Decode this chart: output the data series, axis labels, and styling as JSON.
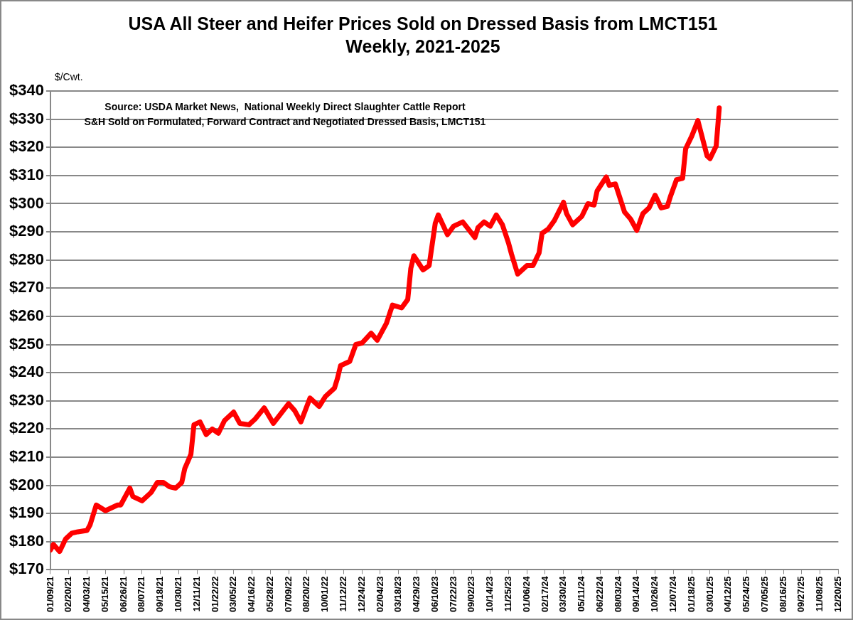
{
  "chart_data": {
    "type": "line",
    "title": "USA All Steer and Heifer Prices Sold on Dressed Basis from LMCT151",
    "subtitle": "Weekly, 2021-2025",
    "ylabel": "$/Cwt.",
    "annotations": [
      "Source: USDA Market News,  National Weekly Direct Slaughter Cattle Report",
      "S&H Sold on Formulated, Forward Contract and Negotiated Dressed Basis, LMCT151"
    ],
    "x": [
      "2021-01-09",
      "2021-01-16",
      "2021-01-30",
      "2021-02-13",
      "2021-02-27",
      "2021-03-13",
      "2021-04-03",
      "2021-04-10",
      "2021-04-24",
      "2021-05-15",
      "2021-05-29",
      "2021-06-12",
      "2021-06-19",
      "2021-07-10",
      "2021-07-17",
      "2021-08-07",
      "2021-08-28",
      "2021-09-11",
      "2021-09-25",
      "2021-10-09",
      "2021-10-23",
      "2021-11-06",
      "2021-11-13",
      "2021-11-27",
      "2021-12-04",
      "2021-12-18",
      "2022-01-01",
      "2022-01-15",
      "2022-01-29",
      "2022-02-12",
      "2022-03-05",
      "2022-03-19",
      "2022-04-09",
      "2022-04-23",
      "2022-05-14",
      "2022-06-04",
      "2022-07-09",
      "2022-07-23",
      "2022-08-06",
      "2022-08-27",
      "2022-09-17",
      "2022-10-01",
      "2022-10-22",
      "2022-10-29",
      "2022-11-05",
      "2022-11-26",
      "2022-12-10",
      "2022-12-24",
      "2023-01-14",
      "2023-01-28",
      "2023-02-18",
      "2023-03-04",
      "2023-03-25",
      "2023-04-08",
      "2023-04-15",
      "2023-04-22",
      "2023-05-13",
      "2023-05-27",
      "2023-06-10",
      "2023-06-17",
      "2023-07-08",
      "2023-07-22",
      "2023-08-12",
      "2023-09-09",
      "2023-09-16",
      "2023-09-30",
      "2023-10-14",
      "2023-10-28",
      "2023-11-11",
      "2023-11-25",
      "2023-12-02",
      "2023-12-16",
      "2024-01-06",
      "2024-01-20",
      "2024-02-03",
      "2024-02-10",
      "2024-02-24",
      "2024-03-09",
      "2024-03-30",
      "2024-04-06",
      "2024-04-20",
      "2024-05-11",
      "2024-05-25",
      "2024-06-08",
      "2024-06-15",
      "2024-07-06",
      "2024-07-13",
      "2024-07-27",
      "2024-08-17",
      "2024-08-31",
      "2024-09-14",
      "2024-09-28",
      "2024-10-12",
      "2024-10-26",
      "2024-11-09",
      "2024-11-23",
      "2024-11-30",
      "2024-12-14",
      "2024-12-28",
      "2025-01-04",
      "2025-01-18",
      "2025-02-01",
      "2025-02-22",
      "2025-03-01",
      "2025-03-15",
      "2025-03-22"
    ],
    "series": [
      {
        "color": "#ff0000",
        "values": [
          177,
          179,
          176.5,
          181,
          183,
          183.5,
          184,
          186,
          193,
          191,
          192,
          193,
          193,
          199,
          196,
          194.5,
          197.5,
          201,
          201,
          199.5,
          199,
          201,
          206,
          211,
          221.5,
          222.5,
          218,
          220,
          218.5,
          223,
          226,
          222,
          221.5,
          223.5,
          227.5,
          222,
          229,
          226.5,
          222.5,
          231,
          228,
          231.5,
          234.5,
          238,
          242.5,
          244,
          250,
          250.5,
          254,
          251.5,
          257.5,
          264,
          263,
          266,
          277,
          281.5,
          276.5,
          278,
          293,
          296,
          289,
          292,
          293.5,
          288,
          291.5,
          293.5,
          292,
          296,
          292.5,
          286,
          282,
          275,
          278,
          278,
          282.5,
          289.5,
          291,
          294,
          300.5,
          296.5,
          292.5,
          295.5,
          300,
          299.5,
          304.5,
          309.5,
          306.5,
          307,
          297,
          294.5,
          290.5,
          296.5,
          298.5,
          303,
          298.5,
          299,
          302.5,
          308.5,
          309,
          319.5,
          324,
          329.5,
          317,
          316,
          320.5,
          334
        ]
      }
    ],
    "xlim": [
      "2021-01-09",
      "2025-12-20"
    ],
    "xticks": [
      {
        "value": "2021-01-09",
        "label": "01/09/21"
      },
      {
        "value": "2021-02-20",
        "label": "02/20/21"
      },
      {
        "value": "2021-04-03",
        "label": "04/03/21"
      },
      {
        "value": "2021-05-15",
        "label": "05/15/21"
      },
      {
        "value": "2021-06-26",
        "label": "06/26/21"
      },
      {
        "value": "2021-08-07",
        "label": "08/07/21"
      },
      {
        "value": "2021-09-18",
        "label": "09/18/21"
      },
      {
        "value": "2021-10-30",
        "label": "10/30/21"
      },
      {
        "value": "2021-12-11",
        "label": "12/11/21"
      },
      {
        "value": "2022-01-22",
        "label": "01/22/22"
      },
      {
        "value": "2022-03-05",
        "label": "03/05/22"
      },
      {
        "value": "2022-04-16",
        "label": "04/16/22"
      },
      {
        "value": "2022-05-28",
        "label": "05/28/22"
      },
      {
        "value": "2022-07-09",
        "label": "07/09/22"
      },
      {
        "value": "2022-08-20",
        "label": "08/20/22"
      },
      {
        "value": "2022-10-01",
        "label": "10/01/22"
      },
      {
        "value": "2022-11-12",
        "label": "11/12/22"
      },
      {
        "value": "2022-12-24",
        "label": "12/24/22"
      },
      {
        "value": "2023-02-04",
        "label": "02/04/23"
      },
      {
        "value": "2023-03-18",
        "label": "03/18/23"
      },
      {
        "value": "2023-04-29",
        "label": "04/29/23"
      },
      {
        "value": "2023-06-10",
        "label": "06/10/23"
      },
      {
        "value": "2023-07-22",
        "label": "07/22/23"
      },
      {
        "value": "2023-09-02",
        "label": "09/02/23"
      },
      {
        "value": "2023-10-14",
        "label": "10/14/23"
      },
      {
        "value": "2023-11-25",
        "label": "11/25/23"
      },
      {
        "value": "2024-01-06",
        "label": "01/06/24"
      },
      {
        "value": "2024-02-17",
        "label": "02/17/24"
      },
      {
        "value": "2024-03-30",
        "label": "03/30/24"
      },
      {
        "value": "2024-05-11",
        "label": "05/11/24"
      },
      {
        "value": "2024-06-22",
        "label": "06/22/24"
      },
      {
        "value": "2024-08-03",
        "label": "08/03/24"
      },
      {
        "value": "2024-09-14",
        "label": "09/14/24"
      },
      {
        "value": "2024-10-26",
        "label": "10/26/24"
      },
      {
        "value": "2024-12-07",
        "label": "12/07/24"
      },
      {
        "value": "2025-01-18",
        "label": "01/18/25"
      },
      {
        "value": "2025-03-01",
        "label": "03/01/25"
      },
      {
        "value": "2025-04-12",
        "label": "04/12/25"
      },
      {
        "value": "2025-05-24",
        "label": "05/24/25"
      },
      {
        "value": "2025-07-05",
        "label": "07/05/25"
      },
      {
        "value": "2025-08-16",
        "label": "08/16/25"
      },
      {
        "value": "2025-09-27",
        "label": "09/27/25"
      },
      {
        "value": "2025-11-08",
        "label": "11/08/25"
      },
      {
        "value": "2025-12-20",
        "label": "12/20/25"
      }
    ],
    "ylim": [
      170,
      340
    ],
    "yticks": [
      {
        "value": 170,
        "label": "$170"
      },
      {
        "value": 180,
        "label": "$180"
      },
      {
        "value": 190,
        "label": "$190"
      },
      {
        "value": 200,
        "label": "$200"
      },
      {
        "value": 210,
        "label": "$210"
      },
      {
        "value": 220,
        "label": "$220"
      },
      {
        "value": 230,
        "label": "$230"
      },
      {
        "value": 240,
        "label": "$240"
      },
      {
        "value": 250,
        "label": "$250"
      },
      {
        "value": 260,
        "label": "$260"
      },
      {
        "value": 270,
        "label": "$270"
      },
      {
        "value": 280,
        "label": "$280"
      },
      {
        "value": 290,
        "label": "$290"
      },
      {
        "value": 300,
        "label": "$300"
      },
      {
        "value": 310,
        "label": "$310"
      },
      {
        "value": 320,
        "label": "$320"
      },
      {
        "value": 330,
        "label": "$330"
      },
      {
        "value": 340,
        "label": "$340"
      }
    ],
    "grid": "y",
    "legend": false,
    "marker": "none",
    "line_style": "solid"
  }
}
